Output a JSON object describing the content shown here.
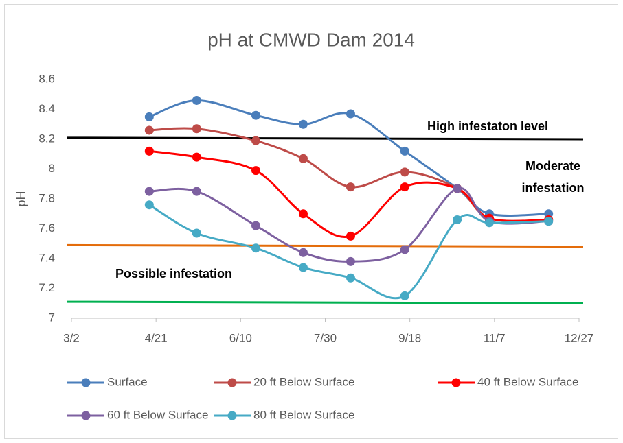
{
  "chart_data": {
    "type": "line",
    "title": "pH at CMWD Dam 2014",
    "y_label": "pH",
    "x": [
      "4/17",
      "5/15",
      "6/19",
      "7/17",
      "8/14",
      "9/15",
      "10/16",
      "11/4",
      "12/9"
    ],
    "xlim": [
      "3/2",
      "12/27"
    ],
    "xticks": [
      "3/2",
      "4/21",
      "6/10",
      "7/30",
      "9/18",
      "11/7",
      "12/27"
    ],
    "ylim": [
      7,
      8.6
    ],
    "yticks": [
      7,
      7.2,
      7.4,
      7.6,
      7.8,
      8,
      8.2,
      8.4,
      8.6
    ],
    "series": [
      {
        "name": "Surface",
        "color": "#4a7ebb",
        "values": [
          8.35,
          8.46,
          8.36,
          8.3,
          8.37,
          8.12,
          7.87,
          7.7,
          7.7
        ]
      },
      {
        "name": "20 ft Below Surface",
        "color": "#be4b48",
        "values": [
          8.26,
          8.27,
          8.19,
          8.07,
          7.88,
          7.98,
          7.87,
          7.67,
          7.66
        ]
      },
      {
        "name": "40 ft Below Surface",
        "color": "#ff0000",
        "values": [
          8.12,
          8.08,
          7.99,
          7.7,
          7.55,
          7.88,
          7.87,
          7.67,
          7.66
        ]
      },
      {
        "name": "60 ft Below Surface",
        "color": "#7d60a0",
        "values": [
          7.85,
          7.85,
          7.62,
          7.44,
          7.38,
          7.46,
          7.87,
          7.65,
          7.65
        ]
      },
      {
        "name": "80 ft Below Surface",
        "color": "#46aac5",
        "values": [
          7.76,
          7.57,
          7.47,
          7.34,
          7.27,
          7.15,
          7.66,
          7.64,
          7.65
        ]
      }
    ],
    "reference_lines": [
      {
        "color": "#000000",
        "values": [
          8.21,
          8.2
        ]
      },
      {
        "color": "#e46c0a",
        "values": [
          7.49,
          7.48
        ]
      },
      {
        "color": "#00b050",
        "values": [
          7.11,
          7.1
        ]
      }
    ],
    "annotations": [
      "High infestaton level",
      "Moderate infestation",
      "Possible infestation"
    ]
  }
}
